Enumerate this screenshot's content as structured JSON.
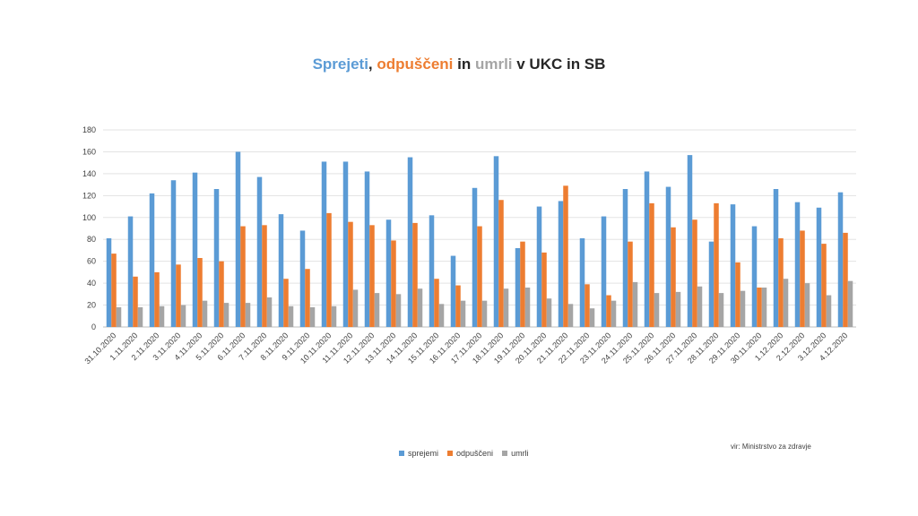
{
  "title_parts": [
    {
      "text": "Sprejeti",
      "color": "#5b9bd5"
    },
    {
      "text": ", ",
      "color": "#262626"
    },
    {
      "text": "odpuščeni",
      "color": "#ed7d31"
    },
    {
      "text": " in ",
      "color": "#262626"
    },
    {
      "text": "umrli",
      "color": "#a5a5a5"
    },
    {
      "text": " v UKC in SB",
      "color": "#262626"
    }
  ],
  "source": "vir: Ministrstvo za zdravje",
  "chart_data": {
    "type": "bar",
    "title": "Sprejeti, odpuščeni in umrli v UKC in SB",
    "ylim": [
      0,
      180
    ],
    "yticks": [
      0,
      20,
      40,
      60,
      80,
      100,
      120,
      140,
      160,
      180
    ],
    "grid": true,
    "legend_position": "bottom",
    "categories": [
      "31.10.2020",
      "1.11.2020",
      "2.11.2020",
      "3.11.2020",
      "4.11.2020",
      "5.11.2020",
      "6.11.2020",
      "7.11.2020",
      "8.11.2020",
      "9.11.2020",
      "10.11.2020",
      "11.11.2020",
      "12.11.2020",
      "13.11.2020",
      "14.11.2020",
      "15.11.2020",
      "16.11.2020",
      "17.11.2020",
      "18.11.2020",
      "19.11.2020",
      "20.11.2020",
      "21.11.2020",
      "22.11.2020",
      "23.11.2020",
      "24.11.2020",
      "25.11.2020",
      "26.11.2020",
      "27.11.2020",
      "28.11.2020",
      "29.11.2020",
      "30.11.2020",
      "1.12.2020",
      "2.12.2020",
      "3.12.2020",
      "4.12.2020"
    ],
    "series": [
      {
        "name": "sprejemi",
        "color": "#5b9bd5",
        "values": [
          81,
          101,
          122,
          134,
          141,
          126,
          160,
          137,
          103,
          88,
          151,
          151,
          142,
          98,
          155,
          102,
          65,
          127,
          156,
          72,
          110,
          115,
          81,
          101,
          126,
          142,
          128,
          157,
          78,
          112,
          92,
          126,
          114,
          109,
          123
        ]
      },
      {
        "name": "odpuščeni",
        "color": "#ed7d31",
        "values": [
          67,
          46,
          50,
          57,
          63,
          60,
          92,
          93,
          44,
          53,
          104,
          96,
          93,
          79,
          95,
          44,
          38,
          92,
          116,
          78,
          68,
          129,
          39,
          29,
          78,
          113,
          91,
          98,
          113,
          59,
          36,
          81,
          88,
          76,
          86
        ]
      },
      {
        "name": "umrli",
        "color": "#a5a5a5",
        "values": [
          18,
          18,
          19,
          20,
          24,
          22,
          22,
          27,
          19,
          18,
          19,
          34,
          31,
          30,
          35,
          21,
          24,
          24,
          35,
          36,
          26,
          21,
          17,
          24,
          41,
          31,
          32,
          37,
          31,
          33,
          36,
          44,
          40,
          29,
          42
        ]
      }
    ]
  }
}
